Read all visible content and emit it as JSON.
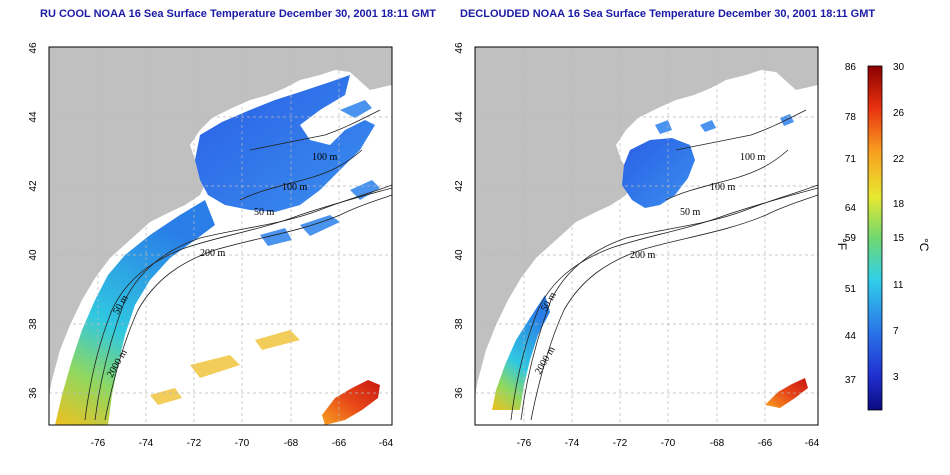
{
  "panels": [
    {
      "title": "RU COOL NOAA 16 Sea Surface Temperature December 30, 2001 18:11 GMT",
      "lat_ticks": [
        "46",
        "44",
        "42",
        "40",
        "38",
        "36"
      ],
      "lon_ticks": [
        "-76",
        "-74",
        "-72",
        "-70",
        "-68",
        "-66",
        "-64"
      ],
      "contour_labels": [
        "100 m",
        "100 m",
        "50 m",
        "200 m",
        "50 m",
        "2000 m"
      ]
    },
    {
      "title": "DECLOUDED NOAA 16 Sea Surface Temperature December 30, 2001 18:11 GMT",
      "lat_ticks": [
        "46",
        "44",
        "42",
        "40",
        "38",
        "36"
      ],
      "lon_ticks": [
        "-76",
        "-74",
        "-72",
        "-70",
        "-68",
        "-66",
        "-64"
      ],
      "contour_labels": [
        "100 m",
        "100 m",
        "50 m",
        "200 m",
        "50 m",
        "2000 m"
      ]
    }
  ],
  "colorbar": {
    "f_label": "°F",
    "c_label": "°C",
    "f_ticks": [
      "86",
      "78",
      "71",
      "64",
      "59",
      "51",
      "44",
      "37"
    ],
    "c_ticks": [
      "30",
      "26",
      "22",
      "18",
      "15",
      "11",
      "7",
      "3"
    ]
  },
  "colors": {
    "land": "#c0c0c0",
    "ocean_no_data": "#ffffff",
    "title": "#1a1aa6",
    "cold": "#1f5fe0",
    "warm": "#e8501c"
  }
}
